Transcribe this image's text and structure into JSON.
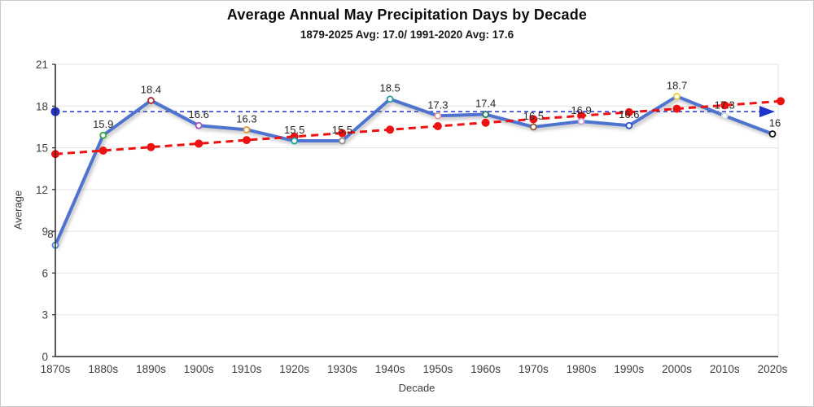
{
  "chart_data": {
    "type": "line",
    "title": "Average Annual May Precipitation Days by Decade",
    "subtitle": "1879-2025 Avg: 17.0/ 1991-2020 Avg: 17.6",
    "xlabel": "Decade",
    "ylabel": "Average",
    "ylim": [
      0,
      21
    ],
    "ytick_step": 3,
    "grid": "horizontal",
    "legend": "none",
    "averages": {
      "avg_1879_2025": 17.0,
      "avg_1991_2020": 17.6
    },
    "categories": [
      "1870s",
      "1880s",
      "1890s",
      "1900s",
      "1910s",
      "1920s",
      "1930s",
      "1940s",
      "1950s",
      "1960s",
      "1970s",
      "1980s",
      "1990s",
      "2000s",
      "2010s",
      "2020s"
    ],
    "series": [
      {
        "name": "average-may-precipitation-days",
        "color": "#4f74cf",
        "values": [
          8,
          15.9,
          18.4,
          16.6,
          16.3,
          15.5,
          15.5,
          18.5,
          17.3,
          17.4,
          16.5,
          16.9,
          16.6,
          18.7,
          17.3,
          16
        ],
        "labels": [
          "8",
          "15.9",
          "18.4",
          "16.6",
          "16.3",
          "15.5",
          "15.5",
          "18.5",
          "17.3",
          "17.4",
          "16.5",
          "16.9",
          "16.6",
          "18.7",
          "17.3",
          "16"
        ],
        "marker_colors": [
          "#4a86d8",
          "#35a83a",
          "#b0282f",
          "#a855c8",
          "#e2952b",
          "#17a0a0",
          "#8f8f8f",
          "#26a0a0",
          "#e59ea4",
          "#1f7a5c",
          "#8a5a30",
          "#c79ed8",
          "#2b50d0",
          "#e6cf3c",
          "#d9d9d9",
          "#141414"
        ]
      }
    ],
    "trendline": {
      "name": "rising-trend",
      "color": "#ee1111",
      "style": "dashed",
      "start_value": 14.55,
      "end_value": 18.35,
      "markers": "red-dot-per-decade"
    },
    "reference_line": {
      "name": "1991-2020-average-line",
      "value": 17.6,
      "color": "#2033cc",
      "style": "dashed",
      "start_cap": "dot",
      "end_cap": "arrow"
    }
  }
}
